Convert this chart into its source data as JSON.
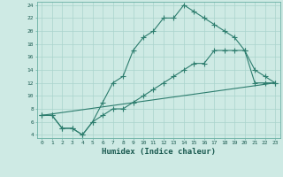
{
  "xlabel": "Humidex (Indice chaleur)",
  "bg_color": "#ceeae4",
  "line_color": "#2d7d6e",
  "grid_color": "#aad4cc",
  "xlim": [
    -0.5,
    23.5
  ],
  "ylim": [
    3.5,
    24.5
  ],
  "xticks": [
    0,
    1,
    2,
    3,
    4,
    5,
    6,
    7,
    8,
    9,
    10,
    11,
    12,
    13,
    14,
    15,
    16,
    17,
    18,
    19,
    20,
    21,
    22,
    23
  ],
  "yticks": [
    4,
    6,
    8,
    10,
    12,
    14,
    16,
    18,
    20,
    22,
    24
  ],
  "line1_x": [
    0,
    1,
    2,
    3,
    4,
    5,
    6,
    7,
    8,
    9,
    10,
    11,
    12,
    13,
    14,
    15,
    16,
    17,
    18,
    19,
    20,
    21,
    22,
    23
  ],
  "line1_y": [
    7,
    7,
    5,
    5,
    4,
    6,
    9,
    12,
    13,
    17,
    19,
    20,
    22,
    22,
    24,
    23,
    22,
    21,
    20,
    19,
    17,
    14,
    13,
    12
  ],
  "line2_x": [
    0,
    1,
    2,
    3,
    4,
    5,
    6,
    7,
    8,
    9,
    10,
    11,
    12,
    13,
    14,
    15,
    16,
    17,
    18,
    19,
    20,
    21,
    22,
    23
  ],
  "line2_y": [
    7,
    7,
    5,
    5,
    4,
    6,
    7,
    8,
    8,
    9,
    10,
    11,
    12,
    13,
    14,
    15,
    15,
    17,
    17,
    17,
    17,
    12,
    12,
    12
  ],
  "line3_x": [
    0,
    23
  ],
  "line3_y": [
    7,
    12
  ]
}
